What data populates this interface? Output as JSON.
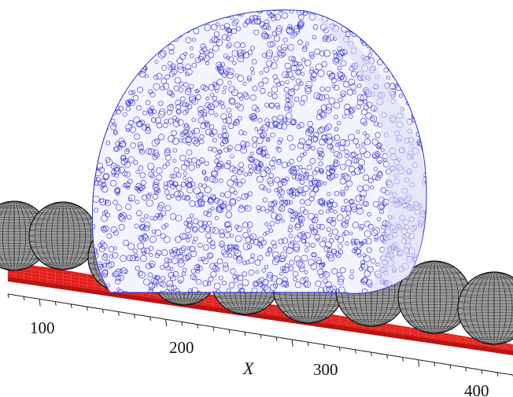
{
  "figure": {
    "axis": {
      "label": "X",
      "ticks": [
        "100",
        "200",
        "300",
        "400"
      ]
    },
    "colors": {
      "background": "#ffffff",
      "ground_plate": "#e0201c",
      "ground_plate_side": "#b81512",
      "ground_mesh": "#f06a66",
      "sphere_fill": "#9a9a9a",
      "sphere_mesh": "#111111",
      "particles": "#2a2ad8",
      "particle_fill": "#f4f4ff",
      "axis_line": "#222222"
    },
    "objects": {
      "particle_body": "particle-body",
      "spheres_count": 9,
      "ground": "red-ground-plate"
    }
  }
}
